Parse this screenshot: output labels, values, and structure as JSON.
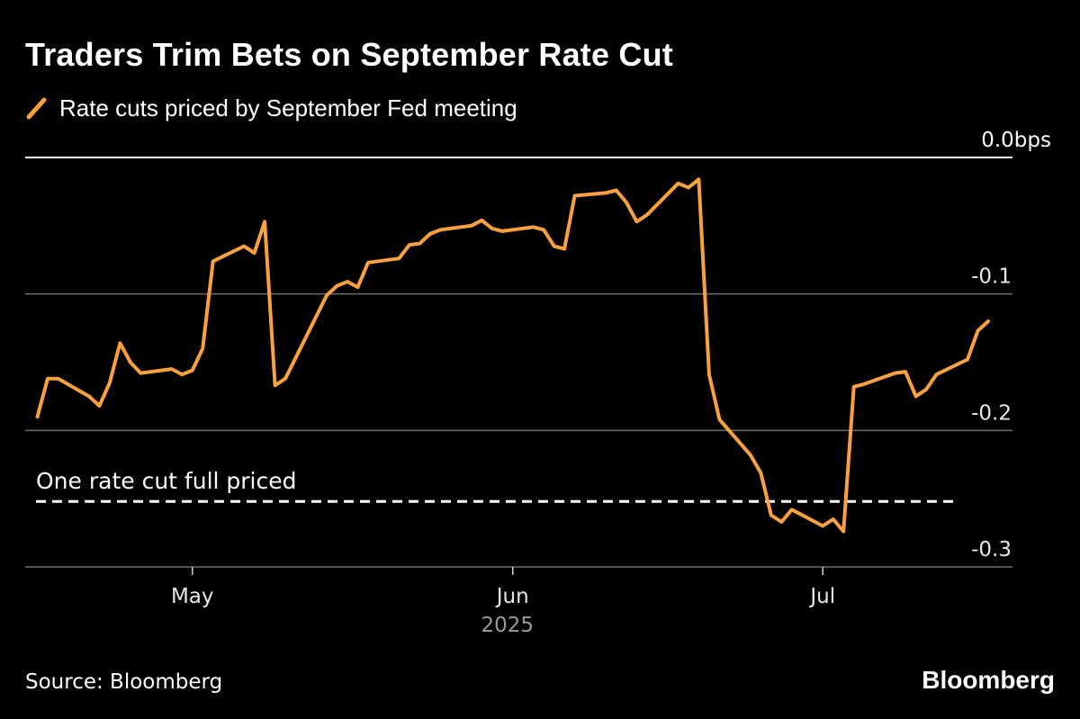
{
  "chart_data": {
    "type": "line",
    "title": "Traders Trim Bets on September Rate Cut",
    "source": "Source: Bloomberg",
    "brand": "Bloomberg",
    "y_unit": "bps",
    "ylim": [
      -0.3,
      0.0
    ],
    "y_ticks": [
      {
        "value": 0.0,
        "label": "0.0"
      },
      {
        "value": -0.1,
        "label": "-0.1"
      },
      {
        "value": -0.2,
        "label": "-0.2"
      },
      {
        "value": -0.3,
        "label": "-0.3"
      }
    ],
    "x_range": [
      "2025-04-15",
      "2025-07-15"
    ],
    "x_ticks": [
      {
        "date": "2025-05-01",
        "label": "May"
      },
      {
        "date": "2025-06-01",
        "label": "Jun"
      },
      {
        "date": "2025-07-01",
        "label": "Jul"
      }
    ],
    "x_year_label": {
      "label": "2025",
      "date": "2025-06-01"
    },
    "reference_line": {
      "value": -0.252,
      "label": "One rate cut full priced",
      "color": "#ffffff",
      "style": "dashed"
    },
    "series": [
      {
        "name": "Rate cuts priced by September Fed meeting",
        "color": "#F9A13E",
        "points": [
          [
            "2025-04-16",
            -0.19
          ],
          [
            "2025-04-17",
            -0.162
          ],
          [
            "2025-04-18",
            -0.162
          ],
          [
            "2025-04-21",
            -0.175
          ],
          [
            "2025-04-22",
            -0.182
          ],
          [
            "2025-04-23",
            -0.165
          ],
          [
            "2025-04-24",
            -0.136
          ],
          [
            "2025-04-25",
            -0.15
          ],
          [
            "2025-04-26",
            -0.158
          ],
          [
            "2025-04-29",
            -0.155
          ],
          [
            "2025-04-30",
            -0.159
          ],
          [
            "2025-05-01",
            -0.156
          ],
          [
            "2025-05-02",
            -0.14
          ],
          [
            "2025-05-03",
            -0.076
          ],
          [
            "2025-05-06",
            -0.065
          ],
          [
            "2025-05-07",
            -0.07
          ],
          [
            "2025-05-08",
            -0.047
          ],
          [
            "2025-05-09",
            -0.167
          ],
          [
            "2025-05-10",
            -0.162
          ],
          [
            "2025-05-14",
            -0.101
          ],
          [
            "2025-05-15",
            -0.094
          ],
          [
            "2025-05-16",
            -0.091
          ],
          [
            "2025-05-17",
            -0.095
          ],
          [
            "2025-05-18",
            -0.077
          ],
          [
            "2025-05-21",
            -0.074
          ],
          [
            "2025-05-22",
            -0.064
          ],
          [
            "2025-05-23",
            -0.063
          ],
          [
            "2025-05-24",
            -0.056
          ],
          [
            "2025-05-25",
            -0.053
          ],
          [
            "2025-05-28",
            -0.05
          ],
          [
            "2025-05-29",
            -0.046
          ],
          [
            "2025-05-30",
            -0.052
          ],
          [
            "2025-05-31",
            -0.054
          ],
          [
            "2025-06-03",
            -0.051
          ],
          [
            "2025-06-04",
            -0.053
          ],
          [
            "2025-06-05",
            -0.065
          ],
          [
            "2025-06-06",
            -0.067
          ],
          [
            "2025-06-07",
            -0.028
          ],
          [
            "2025-06-10",
            -0.026
          ],
          [
            "2025-06-11",
            -0.024
          ],
          [
            "2025-06-12",
            -0.033
          ],
          [
            "2025-06-13",
            -0.047
          ],
          [
            "2025-06-14",
            -0.042
          ],
          [
            "2025-06-17",
            -0.019
          ],
          [
            "2025-06-18",
            -0.022
          ],
          [
            "2025-06-19",
            -0.016
          ],
          [
            "2025-06-20",
            -0.159
          ],
          [
            "2025-06-21",
            -0.192
          ],
          [
            "2025-06-24",
            -0.218
          ],
          [
            "2025-06-25",
            -0.231
          ],
          [
            "2025-06-26",
            -0.262
          ],
          [
            "2025-06-27",
            -0.267
          ],
          [
            "2025-06-28",
            -0.258
          ],
          [
            "2025-07-01",
            -0.27
          ],
          [
            "2025-07-02",
            -0.265
          ],
          [
            "2025-07-03",
            -0.274
          ],
          [
            "2025-07-04",
            -0.168
          ],
          [
            "2025-07-05",
            -0.166
          ],
          [
            "2025-07-08",
            -0.158
          ],
          [
            "2025-07-09",
            -0.157
          ],
          [
            "2025-07-10",
            -0.175
          ],
          [
            "2025-07-11",
            -0.17
          ],
          [
            "2025-07-12",
            -0.159
          ],
          [
            "2025-07-15",
            -0.148
          ],
          [
            "2025-07-16",
            -0.127
          ],
          [
            "2025-07-17",
            -0.12
          ]
        ]
      }
    ]
  }
}
